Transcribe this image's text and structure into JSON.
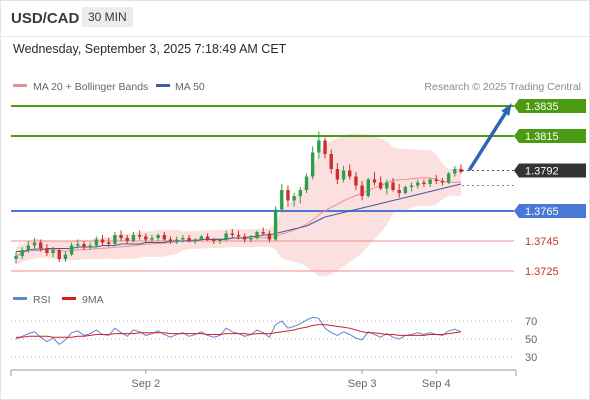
{
  "header": {
    "symbol": "USD/CAD",
    "timeframe": "30 MIN",
    "datetime": "Wednesday, September 3, 2025 7:18:49 AM CET",
    "source": "Research © 2025 Trading Central"
  },
  "legend": {
    "ma20_label": "MA 20 + Bollinger Bands",
    "ma50_label": "MA 50",
    "rsi_label": "RSI",
    "rsi_ma_label": "9MA"
  },
  "colors": {
    "up": "#2e9e4a",
    "down": "#c8302b",
    "ma20": "#f08c8c",
    "band": "#fbdada",
    "ma50": "#3a5e9e",
    "target": "#4a9a12",
    "pivot": "#4a78d6",
    "support": "#f08c8c",
    "current": "#333333",
    "arrow": "#2f66b0",
    "rsi": "#5f84d6",
    "rsi_ma": "#d02020"
  },
  "chart_data": [
    {
      "type": "candlestick",
      "ylim": [
        1.371,
        1.385
      ],
      "x_ticks": [
        "Sep 2",
        "Sep 3",
        "Sep 4"
      ],
      "candles": [
        [
          1.3733,
          1.3738,
          1.373,
          1.3735
        ],
        [
          1.3735,
          1.3741,
          1.3733,
          1.3739
        ],
        [
          1.3739,
          1.3745,
          1.3737,
          1.3742
        ],
        [
          1.3742,
          1.3747,
          1.374,
          1.3744
        ],
        [
          1.3744,
          1.3746,
          1.3738,
          1.374
        ],
        [
          1.374,
          1.3743,
          1.3735,
          1.3737
        ],
        [
          1.3737,
          1.3741,
          1.3734,
          1.3739
        ],
        [
          1.3739,
          1.374,
          1.3731,
          1.3733
        ],
        [
          1.3733,
          1.3738,
          1.3731,
          1.3736
        ],
        [
          1.3736,
          1.3744,
          1.3735,
          1.3742
        ],
        [
          1.3742,
          1.3746,
          1.374,
          1.3743
        ],
        [
          1.3743,
          1.3745,
          1.3739,
          1.3741
        ],
        [
          1.3741,
          1.3744,
          1.3739,
          1.3742
        ],
        [
          1.3742,
          1.3748,
          1.3741,
          1.3746
        ],
        [
          1.3746,
          1.3749,
          1.3742,
          1.3744
        ],
        [
          1.3744,
          1.3747,
          1.3741,
          1.3743
        ],
        [
          1.3743,
          1.3751,
          1.3742,
          1.3749
        ],
        [
          1.3749,
          1.3752,
          1.3745,
          1.3747
        ],
        [
          1.3747,
          1.3749,
          1.3743,
          1.3745
        ],
        [
          1.3745,
          1.3751,
          1.3744,
          1.3749
        ],
        [
          1.3749,
          1.3752,
          1.3746,
          1.3748
        ],
        [
          1.3748,
          1.375,
          1.3744,
          1.3746
        ],
        [
          1.3746,
          1.3749,
          1.3744,
          1.3747
        ],
        [
          1.3747,
          1.375,
          1.3745,
          1.3749
        ],
        [
          1.3749,
          1.3751,
          1.3745,
          1.3746
        ],
        [
          1.3746,
          1.3748,
          1.3743,
          1.3745
        ],
        [
          1.3745,
          1.3748,
          1.3743,
          1.3746
        ],
        [
          1.3746,
          1.3749,
          1.3744,
          1.3747
        ],
        [
          1.3747,
          1.3749,
          1.3744,
          1.3745
        ],
        [
          1.3745,
          1.3747,
          1.3743,
          1.3746
        ],
        [
          1.3746,
          1.3749,
          1.3745,
          1.3748
        ],
        [
          1.3748,
          1.375,
          1.3745,
          1.3746
        ],
        [
          1.3746,
          1.3747,
          1.3743,
          1.3745
        ],
        [
          1.3745,
          1.3747,
          1.3743,
          1.3746
        ],
        [
          1.3746,
          1.3752,
          1.3745,
          1.375
        ],
        [
          1.375,
          1.3753,
          1.3747,
          1.3749
        ],
        [
          1.3749,
          1.3752,
          1.3746,
          1.3748
        ],
        [
          1.3748,
          1.375,
          1.3744,
          1.3746
        ],
        [
          1.3746,
          1.3749,
          1.3744,
          1.3747
        ],
        [
          1.3747,
          1.3752,
          1.3746,
          1.3751
        ],
        [
          1.3751,
          1.3754,
          1.3749,
          1.375
        ],
        [
          1.375,
          1.3752,
          1.3744,
          1.3746
        ],
        [
          1.3746,
          1.3768,
          1.3745,
          1.3766
        ],
        [
          1.3766,
          1.3783,
          1.3764,
          1.3779
        ],
        [
          1.3779,
          1.3782,
          1.3768,
          1.3772
        ],
        [
          1.3772,
          1.3777,
          1.3768,
          1.3775
        ],
        [
          1.3775,
          1.3781,
          1.377,
          1.3779
        ],
        [
          1.3779,
          1.379,
          1.3777,
          1.3788
        ],
        [
          1.3788,
          1.3808,
          1.3786,
          1.3804
        ],
        [
          1.3804,
          1.3818,
          1.38,
          1.3812
        ],
        [
          1.3812,
          1.3814,
          1.38,
          1.3803
        ],
        [
          1.3803,
          1.3806,
          1.379,
          1.3793
        ],
        [
          1.3793,
          1.3797,
          1.3783,
          1.3786
        ],
        [
          1.3786,
          1.3795,
          1.3784,
          1.3792
        ],
        [
          1.3792,
          1.3796,
          1.3786,
          1.3788
        ],
        [
          1.3788,
          1.3791,
          1.3779,
          1.3782
        ],
        [
          1.3782,
          1.3785,
          1.3772,
          1.3775
        ],
        [
          1.3775,
          1.3787,
          1.3774,
          1.3786
        ],
        [
          1.3786,
          1.3791,
          1.3782,
          1.3784
        ],
        [
          1.3784,
          1.3788,
          1.3779,
          1.378
        ],
        [
          1.378,
          1.3786,
          1.3776,
          1.3784
        ],
        [
          1.3784,
          1.3787,
          1.3778,
          1.3779
        ],
        [
          1.3779,
          1.3783,
          1.3774,
          1.3777
        ],
        [
          1.3777,
          1.3782,
          1.3776,
          1.3781
        ],
        [
          1.3781,
          1.3784,
          1.3778,
          1.3782
        ],
        [
          1.3782,
          1.3786,
          1.378,
          1.3784
        ],
        [
          1.3784,
          1.3786,
          1.3781,
          1.3783
        ],
        [
          1.3783,
          1.3787,
          1.3781,
          1.3786
        ],
        [
          1.3786,
          1.3789,
          1.3783,
          1.3785
        ],
        [
          1.3785,
          1.3787,
          1.3782,
          1.3784
        ],
        [
          1.3784,
          1.3791,
          1.3783,
          1.379
        ],
        [
          1.379,
          1.3795,
          1.3788,
          1.3793
        ],
        [
          1.3793,
          1.3796,
          1.379,
          1.3791
        ]
      ],
      "levels": [
        {
          "value": 1.3835,
          "label": "1.3835",
          "role": "target",
          "style": "tag"
        },
        {
          "value": 1.3815,
          "label": "1.3815",
          "role": "target",
          "style": "tag"
        },
        {
          "value": 1.3792,
          "label": "1.3792",
          "role": "current",
          "style": "tag"
        },
        {
          "value": 1.3765,
          "label": "1.3765",
          "role": "pivot",
          "style": "tag"
        },
        {
          "value": 1.3745,
          "label": "1.3745",
          "role": "support",
          "style": "text"
        },
        {
          "value": 1.3725,
          "label": "1.3725",
          "role": "support",
          "style": "text"
        }
      ],
      "ma50": [
        1.3738,
        1.3738,
        1.3739,
        1.3739,
        1.3739,
        1.374,
        1.374,
        1.374,
        1.374,
        1.374,
        1.3741,
        1.3741,
        1.3741,
        1.3741,
        1.3742,
        1.3742,
        1.3742,
        1.3743,
        1.3743,
        1.3743,
        1.3743,
        1.3744,
        1.3744,
        1.3744,
        1.3744,
        1.3745,
        1.3745,
        1.3745,
        1.3745,
        1.3745,
        1.3746,
        1.3746,
        1.3746,
        1.3746,
        1.3746,
        1.3747,
        1.3747,
        1.3747,
        1.3748,
        1.3748,
        1.3749,
        1.3749,
        1.375,
        1.3751,
        1.3752,
        1.3753,
        1.3754,
        1.3755,
        1.3757,
        1.3759,
        1.3761,
        1.3762,
        1.3763,
        1.3764,
        1.3765,
        1.3766,
        1.3767,
        1.3768,
        1.3769,
        1.377,
        1.3771,
        1.3772,
        1.3773,
        1.3774,
        1.3775,
        1.3776,
        1.3777,
        1.3778,
        1.3779,
        1.378,
        1.3781,
        1.3782,
        1.3783
      ]
    },
    {
      "type": "line",
      "title": "RSI",
      "ylim": [
        20,
        80
      ],
      "y_ticks": [
        70,
        50,
        30
      ],
      "series": [
        {
          "name": "RSI",
          "values": [
            50,
            53,
            56,
            58,
            52,
            47,
            51,
            44,
            49,
            57,
            59,
            54,
            56,
            60,
            55,
            54,
            62,
            57,
            53,
            60,
            58,
            54,
            56,
            59,
            55,
            52,
            55,
            57,
            53,
            55,
            58,
            54,
            52,
            54,
            62,
            58,
            56,
            53,
            55,
            60,
            57,
            52,
            66,
            70,
            62,
            64,
            67,
            71,
            74,
            73,
            62,
            57,
            54,
            58,
            55,
            51,
            49,
            58,
            55,
            52,
            56,
            52,
            50,
            54,
            55,
            57,
            55,
            57,
            55,
            54,
            59,
            61,
            58
          ]
        },
        {
          "name": "9MA",
          "values": [
            52,
            52,
            53,
            53,
            53,
            53,
            52,
            52,
            52,
            52,
            53,
            53,
            54,
            55,
            55,
            55,
            56,
            56,
            56,
            56,
            57,
            57,
            57,
            57,
            57,
            56,
            56,
            56,
            56,
            56,
            56,
            55,
            55,
            55,
            56,
            56,
            56,
            56,
            55,
            56,
            56,
            56,
            57,
            58,
            59,
            60,
            62,
            63,
            65,
            66,
            66,
            65,
            64,
            63,
            62,
            60,
            58,
            57,
            57,
            56,
            55,
            55,
            54,
            54,
            54,
            54,
            54,
            55,
            55,
            55,
            56,
            57,
            58
          ]
        }
      ]
    }
  ]
}
